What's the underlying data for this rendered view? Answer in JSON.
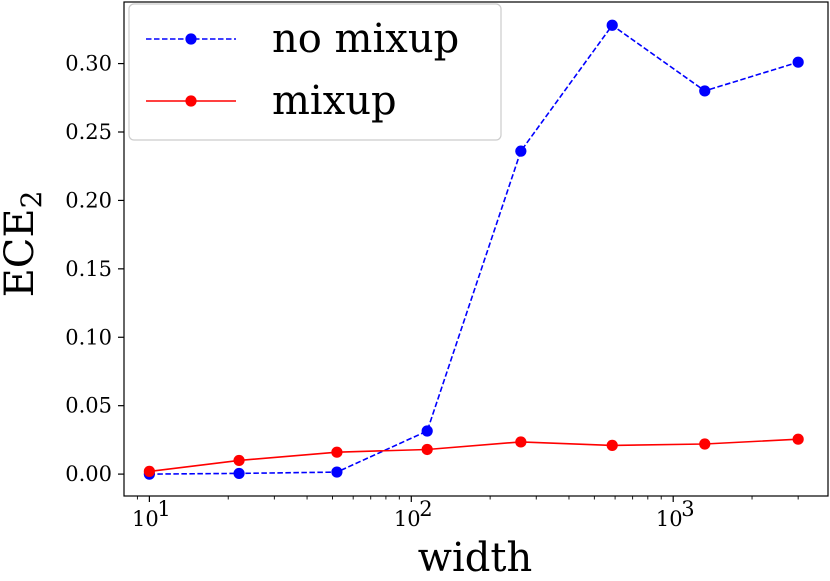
{
  "chart_data": {
    "type": "line",
    "xlabel": "width",
    "ylabel": "ECE",
    "ylabel_subscript": "2",
    "xscale": "log",
    "xlim": [
      8.0,
      3900
    ],
    "ylim": [
      -0.016,
      0.345
    ],
    "xticks": [
      {
        "value": 10,
        "base": "10",
        "exp": "1"
      },
      {
        "value": 100,
        "base": "10",
        "exp": "2"
      },
      {
        "value": 1000,
        "base": "10",
        "exp": "3"
      }
    ],
    "yticks": [
      {
        "value": 0.0,
        "label": "0.00"
      },
      {
        "value": 0.05,
        "label": "0.05"
      },
      {
        "value": 0.1,
        "label": "0.10"
      },
      {
        "value": 0.15,
        "label": "0.15"
      },
      {
        "value": 0.2,
        "label": "0.20"
      },
      {
        "value": 0.25,
        "label": "0.25"
      },
      {
        "value": 0.3,
        "label": "0.30"
      }
    ],
    "x": [
      10,
      22,
      52,
      115,
      262,
      585,
      1320,
      3000
    ],
    "series": [
      {
        "name": "no mixup",
        "color": "#0000ff",
        "linestyle": "dashed",
        "values": [
          0.0,
          0.0005,
          0.0015,
          0.0315,
          0.236,
          0.328,
          0.28,
          0.301
        ]
      },
      {
        "name": "mixup",
        "color": "#ff0000",
        "linestyle": "solid",
        "values": [
          0.002,
          0.01,
          0.016,
          0.018,
          0.0235,
          0.021,
          0.022,
          0.0255
        ]
      }
    ],
    "grid": false,
    "legend": "top-left"
  }
}
